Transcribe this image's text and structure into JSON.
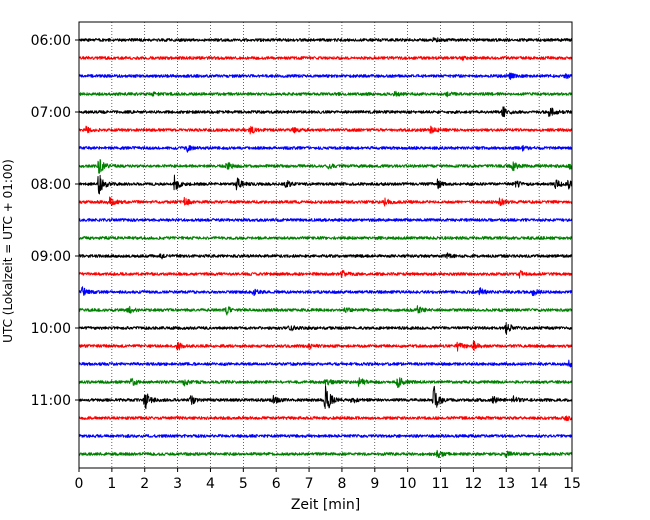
{
  "chart_data": {
    "type": "line",
    "title": "",
    "xlabel": "Zeit  [min]",
    "ylabel": "UTC (Lokalzeit = UTC + 01:00)",
    "xlim": [
      0,
      15
    ],
    "x_ticks": [
      "0",
      "1",
      "2",
      "3",
      "4",
      "5",
      "6",
      "7",
      "8",
      "9",
      "10",
      "11",
      "12",
      "13",
      "14",
      "15"
    ],
    "y_ticks": [
      {
        "label": "06:00",
        "trace": 0
      },
      {
        "label": "07:00",
        "trace": 4
      },
      {
        "label": "08:00",
        "trace": 8
      },
      {
        "label": "09:00",
        "trace": 12
      },
      {
        "label": "10:00",
        "trace": 16
      },
      {
        "label": "11:00",
        "trace": 20
      }
    ],
    "grid": "vertical dotted lines at each minute",
    "colors": [
      "#000000",
      "#ff0000",
      "#0000ff",
      "#008000"
    ],
    "trace_interval_minutes": 15,
    "traces": [
      {
        "start": "06:00",
        "color": "#000000",
        "events": [
          {
            "t": 10.8,
            "a": 0.2
          }
        ]
      },
      {
        "start": "06:15",
        "color": "#ff0000",
        "events": [
          {
            "t": 11.6,
            "a": 0.15
          }
        ]
      },
      {
        "start": "06:30",
        "color": "#0000ff",
        "events": [
          {
            "t": 13.1,
            "a": 0.25
          },
          {
            "t": 14.8,
            "a": 0.2
          }
        ]
      },
      {
        "start": "06:45",
        "color": "#008000",
        "events": [
          {
            "t": 2.2,
            "a": 0.15
          },
          {
            "t": 9.6,
            "a": 0.2
          },
          {
            "t": 11.2,
            "a": 0.15
          }
        ]
      },
      {
        "start": "07:00",
        "color": "#000000",
        "events": [
          {
            "t": 12.9,
            "a": 0.45
          },
          {
            "t": 14.3,
            "a": 0.55
          }
        ]
      },
      {
        "start": "07:15",
        "color": "#ff0000",
        "events": [
          {
            "t": 0.2,
            "a": 0.25
          },
          {
            "t": 5.2,
            "a": 0.35
          },
          {
            "t": 6.5,
            "a": 0.25
          },
          {
            "t": 10.7,
            "a": 0.3
          }
        ]
      },
      {
        "start": "07:30",
        "color": "#0000ff",
        "events": [
          {
            "t": 3.3,
            "a": 0.25
          },
          {
            "t": 13.5,
            "a": 0.2
          }
        ]
      },
      {
        "start": "07:45",
        "color": "#008000",
        "events": [
          {
            "t": 0.6,
            "a": 0.7
          },
          {
            "t": 4.5,
            "a": 0.35
          },
          {
            "t": 7.6,
            "a": 0.2
          },
          {
            "t": 13.2,
            "a": 0.4
          },
          {
            "t": 14.9,
            "a": 0.3
          }
        ]
      },
      {
        "start": "08:00",
        "color": "#000000",
        "events": [
          {
            "t": 0.6,
            "a": 1.0
          },
          {
            "t": 2.9,
            "a": 0.8
          },
          {
            "t": 4.8,
            "a": 0.55
          },
          {
            "t": 6.3,
            "a": 0.3
          },
          {
            "t": 10.9,
            "a": 0.4
          },
          {
            "t": 13.3,
            "a": 0.3
          },
          {
            "t": 14.5,
            "a": 0.35
          },
          {
            "t": 14.9,
            "a": 0.45
          }
        ]
      },
      {
        "start": "08:15",
        "color": "#ff0000",
        "events": [
          {
            "t": 0.9,
            "a": 0.45
          },
          {
            "t": 3.2,
            "a": 0.35
          },
          {
            "t": 9.3,
            "a": 0.3
          },
          {
            "t": 12.8,
            "a": 0.3
          }
        ]
      },
      {
        "start": "08:30",
        "color": "#0000ff",
        "events": []
      },
      {
        "start": "08:45",
        "color": "#008000",
        "events": []
      },
      {
        "start": "09:00",
        "color": "#000000",
        "events": [
          {
            "t": 2.5,
            "a": 0.2
          },
          {
            "t": 11.2,
            "a": 0.2
          }
        ]
      },
      {
        "start": "09:15",
        "color": "#ff0000",
        "events": [
          {
            "t": 8.0,
            "a": 0.3
          },
          {
            "t": 13.4,
            "a": 0.25
          }
        ]
      },
      {
        "start": "09:30",
        "color": "#0000ff",
        "events": [
          {
            "t": 0.1,
            "a": 0.4
          },
          {
            "t": 5.3,
            "a": 0.25
          },
          {
            "t": 12.2,
            "a": 0.3
          },
          {
            "t": 13.8,
            "a": 0.3
          }
        ]
      },
      {
        "start": "09:45",
        "color": "#008000",
        "events": [
          {
            "t": 1.5,
            "a": 0.3
          },
          {
            "t": 4.5,
            "a": 0.35
          },
          {
            "t": 8.1,
            "a": 0.3
          },
          {
            "t": 10.3,
            "a": 0.3
          }
        ]
      },
      {
        "start": "10:00",
        "color": "#000000",
        "events": [
          {
            "t": 6.4,
            "a": 0.25
          },
          {
            "t": 13.0,
            "a": 0.6
          }
        ]
      },
      {
        "start": "10:15",
        "color": "#ff0000",
        "events": [
          {
            "t": 3.0,
            "a": 0.35
          },
          {
            "t": 7.0,
            "a": 0.2
          },
          {
            "t": 11.5,
            "a": 0.4
          },
          {
            "t": 12.0,
            "a": 0.4
          }
        ]
      },
      {
        "start": "10:30",
        "color": "#0000ff",
        "events": [
          {
            "t": 14.9,
            "a": 0.25
          }
        ]
      },
      {
        "start": "10:45",
        "color": "#008000",
        "events": [
          {
            "t": 1.6,
            "a": 0.35
          },
          {
            "t": 3.2,
            "a": 0.3
          },
          {
            "t": 7.5,
            "a": 0.3
          },
          {
            "t": 8.5,
            "a": 0.45
          },
          {
            "t": 9.7,
            "a": 0.55
          }
        ]
      },
      {
        "start": "11:00",
        "color": "#000000",
        "events": [
          {
            "t": 2.0,
            "a": 0.9
          },
          {
            "t": 3.4,
            "a": 0.45
          },
          {
            "t": 5.9,
            "a": 0.35
          },
          {
            "t": 7.5,
            "a": 1.6
          },
          {
            "t": 8.3,
            "a": 0.3
          },
          {
            "t": 10.8,
            "a": 1.3
          },
          {
            "t": 12.6,
            "a": 0.3
          },
          {
            "t": 13.2,
            "a": 0.35
          }
        ]
      },
      {
        "start": "11:15",
        "color": "#ff0000",
        "events": [
          {
            "t": 14.8,
            "a": 0.25
          }
        ]
      },
      {
        "start": "11:30",
        "color": "#0000ff",
        "events": []
      },
      {
        "start": "11:45",
        "color": "#008000",
        "events": [
          {
            "t": 10.9,
            "a": 0.35
          },
          {
            "t": 13.0,
            "a": 0.25
          }
        ]
      }
    ]
  }
}
